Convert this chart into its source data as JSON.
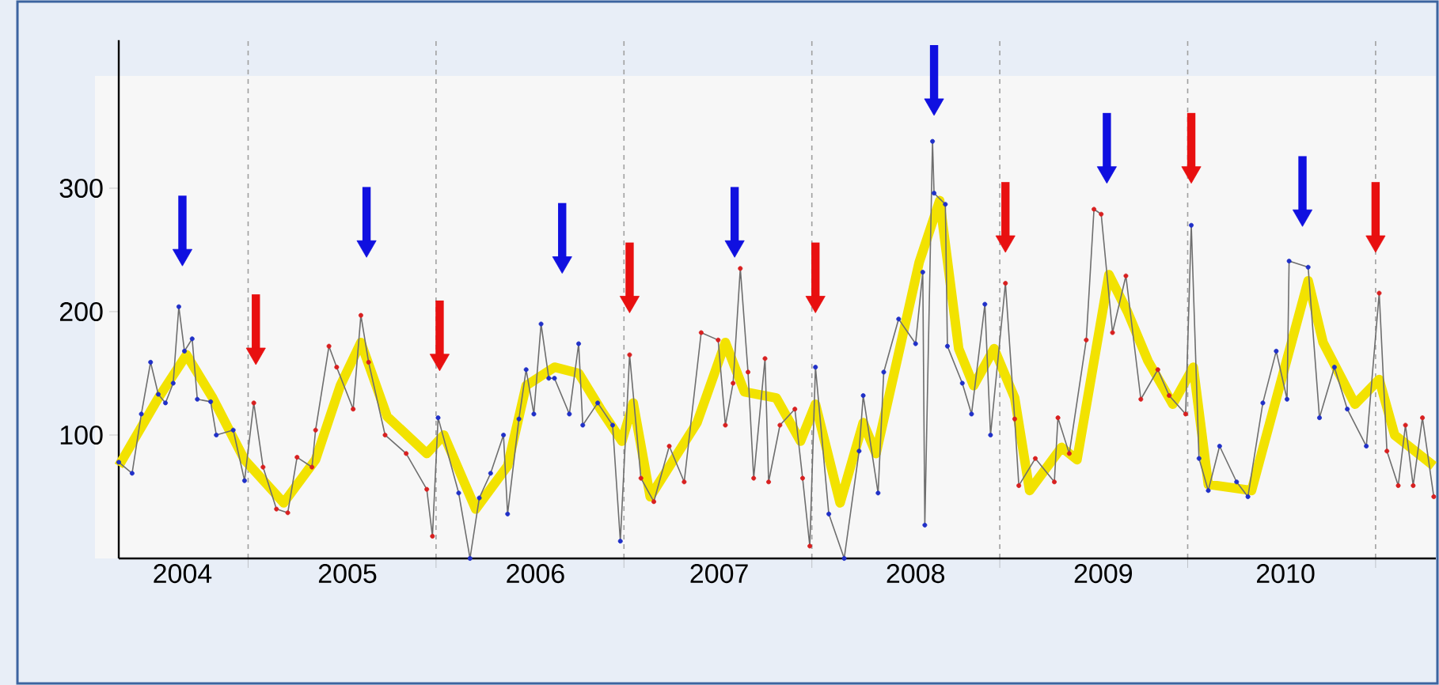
{
  "chart_data": {
    "type": "line",
    "xlim": [
      "2004-04-24",
      "2011-04-28"
    ],
    "ylim": [
      0,
      420
    ],
    "xticks": [
      {
        "value": "2005-01-01",
        "label": null
      },
      {
        "value": "2006-01-01",
        "label": null
      },
      {
        "value": "2007-01-01",
        "label": null
      },
      {
        "value": "2008-01-01",
        "label": null
      },
      {
        "value": "2009-01-01",
        "label": null
      },
      {
        "value": "2010-01-01",
        "label": null
      },
      {
        "value": "2011-01-01",
        "label": null
      },
      {
        "value": "2004-08-26",
        "label": "2004"
      },
      {
        "value": "2005-07-13",
        "label": "2005"
      },
      {
        "value": "2006-07-13",
        "label": "2006"
      },
      {
        "value": "2007-07-05",
        "label": "2007"
      },
      {
        "value": "2008-07-21",
        "label": "2008"
      },
      {
        "value": "2009-07-21",
        "label": "2009"
      },
      {
        "value": "2010-07-10",
        "label": "2010"
      }
    ],
    "yticks": [
      100,
      200,
      300
    ],
    "grid": "x",
    "series": [
      {
        "color": "#f2e200",
        "x": [
          "2004-04-24",
          "2004-07-10",
          "2004-09-03",
          "2004-10-24",
          "2004-12-25",
          "2005-03-11",
          "2005-05-12",
          "2005-06-29",
          "2005-08-08",
          "2005-09-28",
          "2005-12-14",
          "2006-01-16",
          "2006-03-19",
          "2006-05-20",
          "2006-06-25",
          "2006-08-19",
          "2006-10-05",
          "2006-11-18",
          "2006-12-28",
          "2007-01-19",
          "2007-02-21",
          "2007-05-23",
          "2007-07-17",
          "2007-08-23",
          "2007-10-24",
          "2007-12-10",
          "2008-01-08",
          "2008-02-25",
          "2008-04-10",
          "2008-05-05",
          "2008-07-28",
          "2008-09-06",
          "2008-10-13",
          "2008-11-11",
          "2008-12-21",
          "2009-01-30",
          "2009-02-28",
          "2009-05-01",
          "2009-05-31",
          "2009-08-01",
          "2009-09-06",
          "2009-10-16",
          "2009-12-03",
          "2010-01-12",
          "2010-02-10",
          "2010-05-05",
          "2010-06-29",
          "2010-08-23",
          "2010-09-21",
          "2010-11-22",
          "2011-01-08",
          "2011-02-07",
          "2011-04-24"
        ],
        "values": [
          75,
          130,
          165,
          130,
          80,
          45,
          80,
          140,
          175,
          115,
          85,
          100,
          40,
          75,
          140,
          155,
          150,
          120,
          95,
          126,
          50,
          110,
          175,
          135,
          130,
          95,
          125,
          45,
          110,
          85,
          240,
          290,
          170,
          140,
          170,
          130,
          55,
          90,
          80,
          230,
          200,
          160,
          125,
          155,
          60,
          55,
          140,
          225,
          175,
          125,
          145,
          100,
          75
        ]
      },
      {
        "color": "#6e6e6e",
        "marker": "circle",
        "x": [
          "2004-04-24",
          "2004-05-20",
          "2004-06-07",
          "2004-06-25",
          "2004-07-10",
          "2004-07-24",
          "2004-08-08",
          "2004-08-19",
          "2004-08-30",
          "2004-09-14",
          "2004-09-24",
          "2004-10-20",
          "2004-10-31",
          "2004-12-03",
          "2004-12-25",
          "2005-01-12",
          "2005-01-30",
          "2005-02-25",
          "2005-03-19",
          "2005-04-06",
          "2005-05-05",
          "2005-05-12",
          "2005-06-07",
          "2005-06-22",
          "2005-07-24",
          "2005-08-08",
          "2005-08-23",
          "2005-09-24",
          "2005-11-04",
          "2005-12-14",
          "2005-12-25",
          "2006-01-05",
          "2006-02-14",
          "2006-03-08",
          "2006-03-26",
          "2006-04-17",
          "2006-05-12",
          "2006-05-20",
          "2006-06-11",
          "2006-06-25",
          "2006-07-10",
          "2006-07-24",
          "2006-08-08",
          "2006-08-19",
          "2006-09-17",
          "2006-10-05",
          "2006-10-13",
          "2006-11-11",
          "2006-12-10",
          "2006-12-25",
          "2007-01-12",
          "2007-02-03",
          "2007-02-28",
          "2007-03-30",
          "2007-04-28",
          "2007-05-31",
          "2007-07-03",
          "2007-07-17",
          "2007-08-01",
          "2007-08-15",
          "2007-08-30",
          "2007-09-10",
          "2007-10-02",
          "2007-10-09",
          "2007-10-31",
          "2007-11-29",
          "2007-12-14",
          "2007-12-28",
          "2008-01-08",
          "2008-02-03",
          "2008-03-04",
          "2008-04-02",
          "2008-04-10",
          "2008-05-09",
          "2008-05-20",
          "2008-06-18",
          "2008-07-21",
          "2008-08-04",
          "2008-08-08",
          "2008-08-23",
          "2008-08-26",
          "2008-09-17",
          "2008-09-21",
          "2008-10-20",
          "2008-11-07",
          "2008-12-03",
          "2008-12-14",
          "2009-01-12",
          "2009-01-30",
          "2009-02-07",
          "2009-03-11",
          "2009-04-17",
          "2009-04-24",
          "2009-05-16",
          "2009-06-18",
          "2009-07-03",
          "2009-07-17",
          "2009-08-08",
          "2009-09-03",
          "2009-10-02",
          "2009-11-04",
          "2009-11-26",
          "2009-12-28",
          "2010-01-08",
          "2010-01-23",
          "2010-02-10",
          "2010-03-04",
          "2010-04-06",
          "2010-04-28",
          "2010-05-27",
          "2010-06-22",
          "2010-07-13",
          "2010-07-17",
          "2010-08-23",
          "2010-09-14",
          "2010-10-13",
          "2010-11-07",
          "2010-12-14",
          "2011-01-08",
          "2011-01-23",
          "2011-02-14",
          "2011-02-28",
          "2011-03-15",
          "2011-04-02",
          "2011-04-24"
        ],
        "values": [
          78,
          69,
          117,
          159,
          133,
          126,
          142,
          204,
          168,
          178,
          129,
          127,
          100,
          104,
          63,
          126,
          74,
          40,
          37,
          82,
          74,
          104,
          172,
          155,
          121,
          197,
          159,
          100,
          85,
          56,
          18,
          114,
          53,
          0,
          49,
          69,
          100,
          36,
          113,
          153,
          117,
          190,
          146,
          146,
          117,
          174,
          108,
          126,
          108,
          14,
          165,
          65,
          46,
          91,
          62,
          183,
          177,
          108,
          142,
          235,
          151,
          65,
          162,
          62,
          108,
          121,
          65,
          10,
          155,
          36,
          0,
          87,
          132,
          53,
          151,
          194,
          174,
          232,
          27,
          338,
          296,
          287,
          172,
          142,
          117,
          206,
          100,
          223,
          113,
          59,
          81,
          62,
          114,
          85,
          177,
          283,
          279,
          183,
          229,
          129,
          153,
          132,
          117,
          270,
          81,
          55,
          91,
          62,
          50,
          126,
          168,
          129,
          241,
          236,
          114,
          155,
          121,
          91,
          215,
          87,
          59,
          108,
          59,
          114,
          50
        ],
        "colors": [
          "#2030c8",
          "#2030c8",
          "#2030c8",
          "#2030c8",
          "#2030c8",
          "#2030c8",
          "#2030c8",
          "#2030c8",
          "#2030c8",
          "#2030c8",
          "#2030c8",
          "#2030c8",
          "#2030c8",
          "#2030c8",
          "#2030c8",
          "#d82020",
          "#d82020",
          "#d82020",
          "#d82020",
          "#d82020",
          "#d82020",
          "#d82020",
          "#d82020",
          "#d82020",
          "#d82020",
          "#d82020",
          "#d82020",
          "#d82020",
          "#d82020",
          "#d82020",
          "#d82020",
          "#2030c8",
          "#2030c8",
          "#2030c8",
          "#2030c8",
          "#2030c8",
          "#2030c8",
          "#2030c8",
          "#2030c8",
          "#2030c8",
          "#2030c8",
          "#2030c8",
          "#2030c8",
          "#2030c8",
          "#2030c8",
          "#2030c8",
          "#2030c8",
          "#2030c8",
          "#2030c8",
          "#2030c8",
          "#d82020",
          "#d82020",
          "#d82020",
          "#d82020",
          "#d82020",
          "#d82020",
          "#d82020",
          "#d82020",
          "#d82020",
          "#d82020",
          "#d82020",
          "#d82020",
          "#d82020",
          "#d82020",
          "#d82020",
          "#d82020",
          "#d82020",
          "#d82020",
          "#2030c8",
          "#2030c8",
          "#2030c8",
          "#2030c8",
          "#2030c8",
          "#2030c8",
          "#2030c8",
          "#2030c8",
          "#2030c8",
          "#2030c8",
          "#2030c8",
          "#2030c8",
          "#2030c8",
          "#2030c8",
          "#2030c8",
          "#2030c8",
          "#2030c8",
          "#2030c8",
          "#2030c8",
          "#d82020",
          "#d82020",
          "#d82020",
          "#d82020",
          "#d82020",
          "#d82020",
          "#d82020",
          "#d82020",
          "#d82020",
          "#d82020",
          "#d82020",
          "#d82020",
          "#d82020",
          "#d82020",
          "#d82020",
          "#d82020",
          "#2030c8",
          "#2030c8",
          "#2030c8",
          "#2030c8",
          "#2030c8",
          "#2030c8",
          "#2030c8",
          "#2030c8",
          "#2030c8",
          "#2030c8",
          "#2030c8",
          "#2030c8",
          "#2030c8",
          "#2030c8",
          "#2030c8",
          "#d82020",
          "#d82020",
          "#d82020",
          "#d82020",
          "#d82020",
          "#d82020",
          "#d82020"
        ]
      },
      {
        "type": "scatter",
        "color": "#1010e0",
        "x": [
          "2004-08-26",
          "2005-08-19",
          "2006-09-03",
          "2007-08-04",
          "2008-08-26",
          "2009-07-28",
          "2010-08-12"
        ],
        "marker": "triangle",
        "values": [
          246,
          253,
          240,
          253,
          368,
          313,
          278
        ],
        "errors": [
          [
            246,
            294
          ],
          [
            253,
            301
          ],
          [
            240,
            288
          ],
          [
            253,
            301
          ],
          [
            368,
            416
          ],
          [
            313,
            361
          ],
          [
            278,
            326
          ]
        ]
      },
      {
        "type": "scatter",
        "color": "#e81010",
        "x": [
          "2005-01-16",
          "2006-01-08",
          "2007-01-12",
          "2008-01-08",
          "2009-01-12",
          "2010-01-08",
          "2011-01-01"
        ],
        "marker": "triangle",
        "values": [
          166,
          161,
          208,
          208,
          257,
          313,
          257
        ],
        "errors": [
          [
            166,
            214
          ],
          [
            161,
            209
          ],
          [
            208,
            256
          ],
          [
            208,
            256
          ],
          [
            257,
            305
          ],
          [
            313,
            361
          ],
          [
            257,
            305
          ]
        ]
      }
    ]
  }
}
